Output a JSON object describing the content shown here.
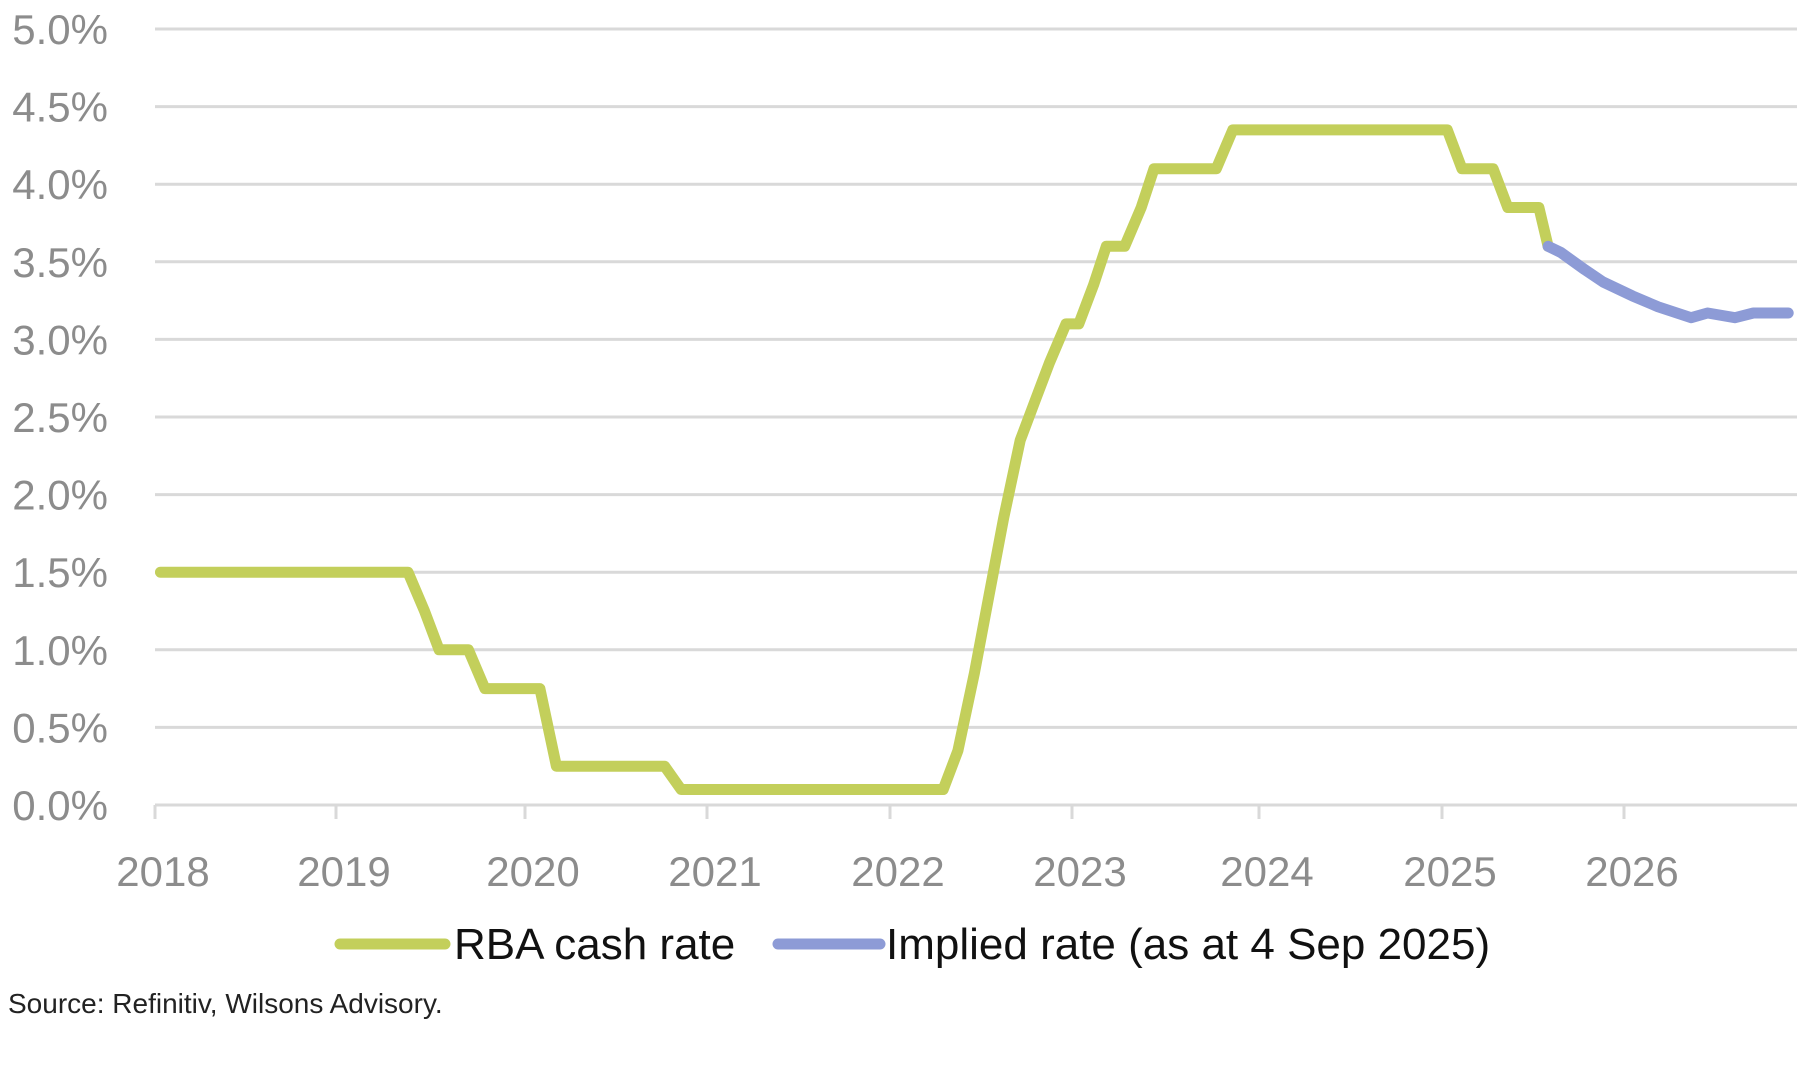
{
  "chart_data": {
    "type": "line",
    "title": "",
    "xlabel": "",
    "ylabel": "",
    "xlim": [
      2018,
      2027
    ],
    "ylim": [
      0,
      5
    ],
    "grid": true,
    "y_ticks": [
      "0.0%",
      "0.5%",
      "1.0%",
      "1.5%",
      "2.0%",
      "2.5%",
      "3.0%",
      "3.5%",
      "4.0%",
      "4.5%",
      "5.0%"
    ],
    "x_ticks": [
      "2018",
      "2019",
      "2020",
      "2021",
      "2022",
      "2023",
      "2024",
      "2025",
      "2026"
    ],
    "legend_position": "bottom",
    "series": [
      {
        "name": "RBA cash rate",
        "color": "#c3cf5b",
        "points": [
          [
            2018.03,
            1.5
          ],
          [
            2019.38,
            1.5
          ],
          [
            2019.47,
            1.25
          ],
          [
            2019.55,
            1.0
          ],
          [
            2019.71,
            1.0
          ],
          [
            2019.8,
            0.75
          ],
          [
            2020.1,
            0.75
          ],
          [
            2020.19,
            0.25
          ],
          [
            2020.78,
            0.25
          ],
          [
            2020.87,
            0.1
          ],
          [
            2022.3,
            0.1
          ],
          [
            2022.38,
            0.35
          ],
          [
            2022.47,
            0.85
          ],
          [
            2022.55,
            1.35
          ],
          [
            2022.63,
            1.85
          ],
          [
            2022.72,
            2.35
          ],
          [
            2022.8,
            2.6
          ],
          [
            2022.88,
            2.85
          ],
          [
            2022.97,
            3.1
          ],
          [
            2023.04,
            3.1
          ],
          [
            2023.12,
            3.35
          ],
          [
            2023.19,
            3.6
          ],
          [
            2023.29,
            3.6
          ],
          [
            2023.38,
            3.85
          ],
          [
            2023.45,
            4.1
          ],
          [
            2023.79,
            4.1
          ],
          [
            2023.88,
            4.35
          ],
          [
            2025.05,
            4.35
          ],
          [
            2025.13,
            4.1
          ],
          [
            2025.3,
            4.1
          ],
          [
            2025.38,
            3.85
          ],
          [
            2025.55,
            3.85
          ],
          [
            2025.6,
            3.6
          ]
        ]
      },
      {
        "name": "Implied rate (as at 4 Sep 2025)",
        "color": "#8d9bd6",
        "points": [
          [
            2025.6,
            3.6
          ],
          [
            2025.67,
            3.56
          ],
          [
            2025.8,
            3.45
          ],
          [
            2025.9,
            3.37
          ],
          [
            2026.06,
            3.28
          ],
          [
            2026.2,
            3.21
          ],
          [
            2026.38,
            3.14
          ],
          [
            2026.47,
            3.17
          ],
          [
            2026.62,
            3.14
          ],
          [
            2026.72,
            3.17
          ],
          [
            2026.91,
            3.17
          ]
        ]
      }
    ]
  },
  "source": "Source: Refinitiv, Wilsons Advisory."
}
